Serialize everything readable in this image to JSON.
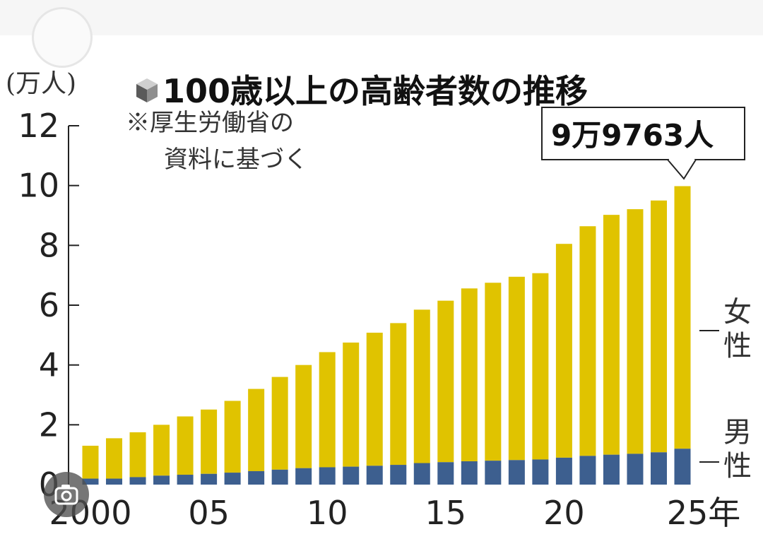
{
  "chart_data": {
    "type": "bar",
    "stacked": true,
    "title": "100歳以上の高齢者数の推移",
    "unit_label": "(万人)",
    "note": [
      "※厚生労働省の",
      "資料に基づく"
    ],
    "callout": "9万9763人",
    "ylim": [
      0,
      12
    ],
    "y_ticks": [
      "0",
      "2",
      "4",
      "6",
      "8",
      "10",
      "12"
    ],
    "x_ticks": [
      "2000",
      "05",
      "10",
      "15",
      "20",
      "25年"
    ],
    "categories": [
      "2000",
      "2001",
      "2002",
      "2003",
      "2004",
      "2005",
      "2006",
      "2007",
      "2008",
      "2009",
      "2010",
      "2011",
      "2012",
      "2013",
      "2014",
      "2015",
      "2016",
      "2017",
      "2018",
      "2019",
      "2020",
      "2021",
      "2022",
      "2023",
      "2024",
      "2025"
    ],
    "series": [
      {
        "name": "男性",
        "color": "#3d5f8f",
        "values": [
          0.2,
          0.2,
          0.25,
          0.3,
          0.33,
          0.36,
          0.4,
          0.45,
          0.5,
          0.55,
          0.58,
          0.6,
          0.63,
          0.66,
          0.72,
          0.75,
          0.78,
          0.8,
          0.82,
          0.84,
          0.9,
          0.96,
          1.0,
          1.03,
          1.08,
          1.2
        ]
      },
      {
        "name": "女性",
        "color": "#e0c300",
        "values": [
          1.1,
          1.35,
          1.5,
          1.7,
          1.95,
          2.15,
          2.4,
          2.75,
          3.1,
          3.45,
          3.85,
          4.15,
          4.45,
          4.74,
          5.13,
          5.4,
          5.78,
          5.95,
          6.13,
          6.23,
          7.15,
          7.68,
          8.02,
          8.18,
          8.42,
          8.78
        ]
      }
    ],
    "grid": false
  }
}
